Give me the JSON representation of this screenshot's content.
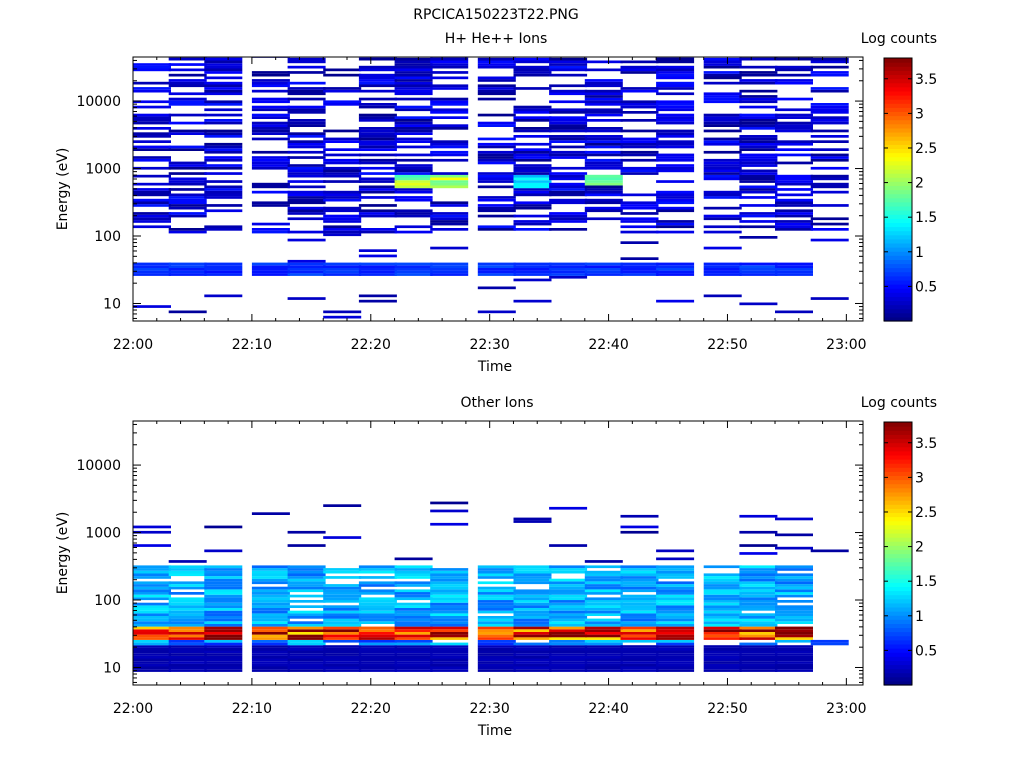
{
  "figure_title": "RPCICA150223T22.PNG",
  "chart_data": [
    {
      "type": "heatmap",
      "title": "H+ He++ Ions",
      "xlabel": "Time",
      "ylabel": "Energy (eV)",
      "xlim": [
        "22:00",
        "23:01"
      ],
      "x_tick_labels": [
        "22:00",
        "22:10",
        "22:20",
        "22:30",
        "22:40",
        "22:50",
        "23:00"
      ],
      "y_scale": "log",
      "ylim": [
        5.5,
        45000
      ],
      "y_tick_labels": [
        "10",
        "100",
        "1000",
        "10000"
      ],
      "colorbar": {
        "label": "Log counts",
        "range": [
          0,
          3.8
        ],
        "tick_labels": [
          "0.5",
          "1",
          "1.5",
          "2",
          "2.5",
          "3",
          "3.5"
        ],
        "colormap": "jet"
      },
      "time_bins": [
        "22:00",
        "22:03",
        "22:06",
        "22:10",
        "22:13",
        "22:16",
        "22:19",
        "22:22",
        "22:25",
        "22:29",
        "22:32",
        "22:35",
        "22:38",
        "22:41",
        "22:44",
        "22:48",
        "22:51",
        "22:54",
        "22:57"
      ],
      "features": [
        {
          "time": "22:22-22:29",
          "energy_eV": "500-800",
          "log_counts": 2.2
        },
        {
          "time": "22:32-22:35",
          "energy_eV": "500-800",
          "log_counts": 1.4
        },
        {
          "time": "22:38-22:41",
          "energy_eV": "550-750",
          "log_counts": 2.1
        },
        {
          "time": "22:00-22:57",
          "energy_eV": "25-40",
          "log_counts": 0.7
        }
      ]
    },
    {
      "type": "heatmap",
      "title": "Other Ions",
      "xlabel": "Time",
      "ylabel": "Energy (eV)",
      "xlim": [
        "22:00",
        "23:01"
      ],
      "x_tick_labels": [
        "22:00",
        "22:10",
        "22:20",
        "22:30",
        "22:40",
        "22:50",
        "23:00"
      ],
      "y_scale": "log",
      "ylim": [
        5.5,
        45000
      ],
      "y_tick_labels": [
        "10",
        "100",
        "1000",
        "10000"
      ],
      "colorbar": {
        "label": "Log counts",
        "range": [
          0,
          3.8
        ],
        "tick_labels": [
          "0.5",
          "1",
          "1.5",
          "2",
          "2.5",
          "3",
          "3.5"
        ],
        "colormap": "jet"
      },
      "time_bins": [
        "22:00",
        "22:03",
        "22:06",
        "22:10",
        "22:13",
        "22:16",
        "22:19",
        "22:22",
        "22:25",
        "22:29",
        "22:32",
        "22:35",
        "22:38",
        "22:41",
        "22:44",
        "22:48",
        "22:51",
        "22:54",
        "22:57"
      ],
      "features": [
        {
          "time": "22:00-22:57",
          "energy_eV": "25-40",
          "log_counts": 3.5
        },
        {
          "time": "22:00-22:57",
          "energy_eV": "40-300",
          "log_counts": 1.2
        },
        {
          "time": "22:00-22:57",
          "energy_eV": "8-20",
          "log_counts": 0.2
        }
      ]
    }
  ]
}
